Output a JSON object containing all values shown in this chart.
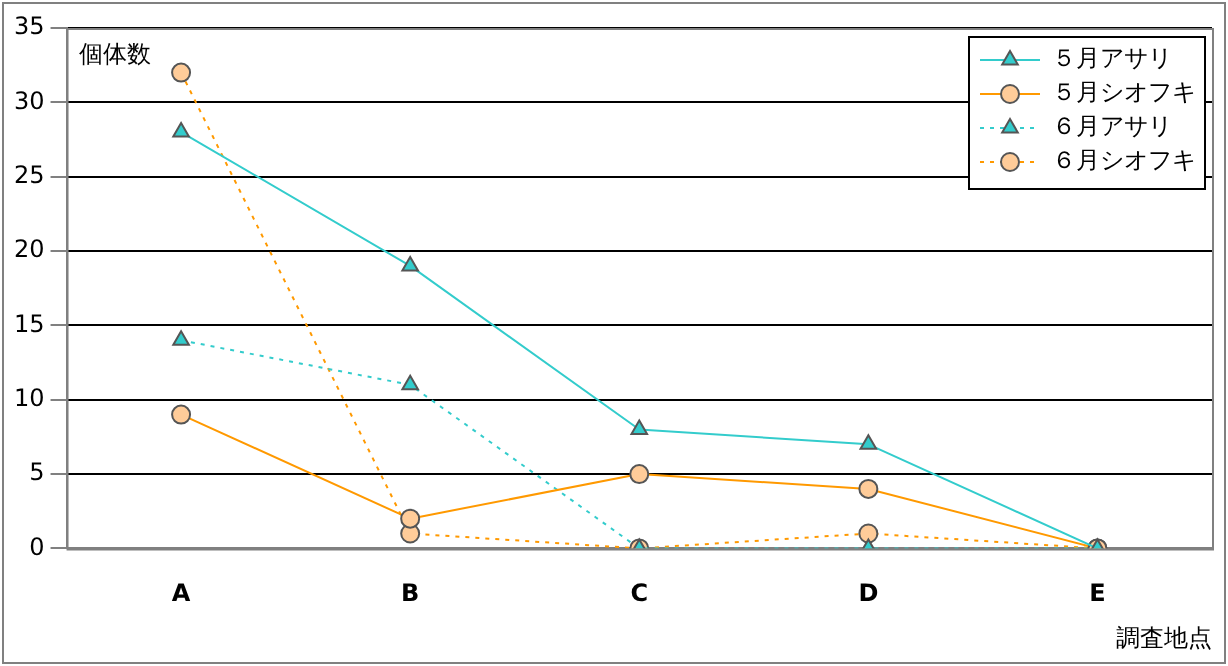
{
  "chart_data": {
    "type": "line",
    "ylabel": "個体数",
    "xlabel": "調査地点",
    "categories": [
      "A",
      "B",
      "C",
      "D",
      "E"
    ],
    "ylim": [
      0,
      35
    ],
    "yticks": [
      0,
      5,
      10,
      15,
      20,
      25,
      30,
      35
    ],
    "grid": "y",
    "legend": "top right",
    "series": [
      {
        "name": "５月アサリ",
        "color": "#33cccc",
        "marker": "triangle",
        "line_style": "solid",
        "values": [
          28,
          19,
          8,
          7,
          0
        ]
      },
      {
        "name": "５月シオフキ",
        "color": "#ff9900",
        "marker": "circle",
        "line_style": "solid",
        "values": [
          9,
          2,
          5,
          4,
          0
        ]
      },
      {
        "name": "６月アサリ",
        "color": "#33cccc",
        "marker": "triangle",
        "line_style": "dotted",
        "values": [
          14,
          11,
          0,
          0,
          0
        ]
      },
      {
        "name": "６月シオフキ",
        "color": "#ff9900",
        "marker": "circle",
        "line_style": "dotted",
        "values": [
          32,
          1,
          0,
          1,
          0
        ]
      }
    ]
  }
}
